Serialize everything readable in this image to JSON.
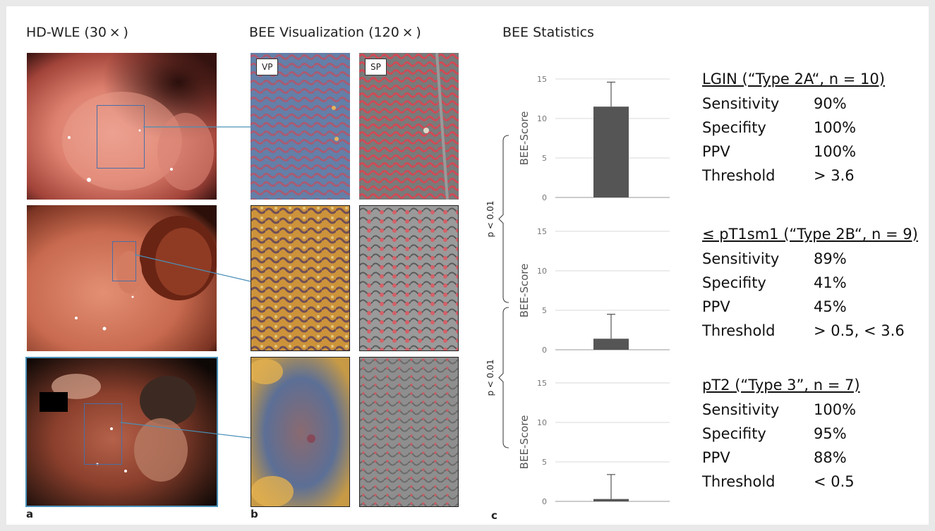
{
  "headings": {
    "a": "HD-WLE (30 × )",
    "b": "BEE Visualization (120 × )",
    "c": "BEE Statistics"
  },
  "panel_letters": {
    "a": "a",
    "b": "b",
    "c": "c"
  },
  "tags": {
    "vp": "VP",
    "sp": "SP"
  },
  "chart_data": [
    {
      "type": "bar",
      "categories": [
        "LGIN"
      ],
      "values": [
        11.5
      ],
      "error_upper": [
        14.6
      ],
      "ylabel": "BEE-Score",
      "ylim": [
        0,
        15
      ],
      "yticks": [
        "0",
        "5",
        "10",
        "15"
      ],
      "grid": true
    },
    {
      "type": "bar",
      "categories": [
        "≤ pT1sm1"
      ],
      "values": [
        1.4
      ],
      "error_upper": [
        4.5
      ],
      "ylabel": "BEE-Score",
      "ylim": [
        0,
        15
      ],
      "yticks": [
        "0",
        "5",
        "10",
        "15"
      ],
      "grid": true
    },
    {
      "type": "bar",
      "categories": [
        "pT2"
      ],
      "values": [
        0.3
      ],
      "error_upper": [
        3.4
      ],
      "ylabel": "BEE-Score",
      "ylim": [
        0,
        15
      ],
      "yticks": [
        "0",
        "5",
        "10",
        "15"
      ],
      "grid": true
    }
  ],
  "significance": [
    {
      "label": "p < 0.01",
      "between": "LGIN vs ≤ pT1sm1"
    },
    {
      "label": "p < 0.01",
      "between": "≤ pT1sm1 vs pT2"
    }
  ],
  "stats": [
    {
      "title": "LGIN (“Type 2A“, n = 10)",
      "rows": [
        {
          "label": "Sensitivity",
          "value": "90%"
        },
        {
          "label": "Specifity",
          "value": "100%"
        },
        {
          "label": "PPV",
          "value": "100%"
        },
        {
          "label": "Threshold",
          "value": "> 3.6"
        }
      ]
    },
    {
      "title": "≤ pT1sm1 (“Type 2B“, n = 9)",
      "rows": [
        {
          "label": "Sensitivity",
          "value": "89%"
        },
        {
          "label": "Specifity",
          "value": "41%"
        },
        {
          "label": "PPV",
          "value": "45%"
        },
        {
          "label": "Threshold",
          "value": "> 0.5, < 3.6"
        }
      ]
    },
    {
      "title": "pT2 (“Type 3”, n = 7)",
      "rows": [
        {
          "label": "Sensitivity",
          "value": "100%"
        },
        {
          "label": "Specifity",
          "value": "95%"
        },
        {
          "label": "PPV",
          "value": "88%"
        },
        {
          "label": "Threshold",
          "value": "< 0.5"
        }
      ]
    }
  ],
  "colors": {
    "bar": "#555555",
    "grid": "#d9d9d9",
    "box": "#4a6fa5",
    "connector": "#4a90b8"
  }
}
